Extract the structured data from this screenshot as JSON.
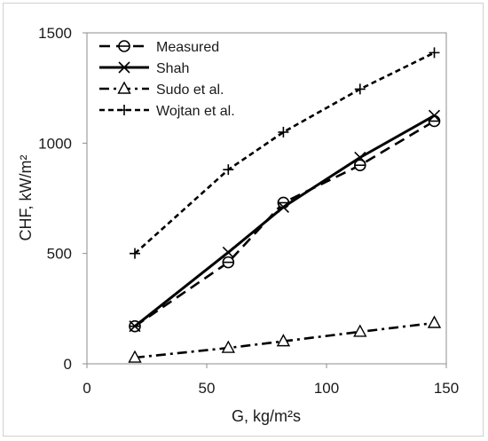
{
  "chart_data": {
    "type": "line",
    "xlabel": "G, kg/m²s",
    "ylabel": "CHF, kW/m²",
    "xlim": [
      0,
      150
    ],
    "ylim": [
      0,
      1500
    ],
    "xticks": [
      "0",
      "50",
      "100",
      "150"
    ],
    "yticks": [
      "0",
      "500",
      "1000",
      "1500"
    ],
    "grid": false,
    "legend_position": "top-left",
    "series": [
      {
        "name": "Measured",
        "marker": "circle-bar",
        "line": "dashed",
        "x": [
          20,
          59,
          82,
          114,
          145
        ],
        "y": [
          170,
          460,
          730,
          900,
          1100
        ]
      },
      {
        "name": "Shah",
        "marker": "x",
        "line": "solid",
        "x": [
          20,
          59,
          82,
          114,
          145
        ],
        "y": [
          170,
          505,
          710,
          935,
          1125
        ]
      },
      {
        "name": "Sudo et al.",
        "marker": "triangle",
        "line": "dashdot",
        "x": [
          20,
          59,
          82,
          114,
          145
        ],
        "y": [
          28,
          72,
          102,
          145,
          185
        ]
      },
      {
        "name": "Wojtan et al.",
        "marker": "plus",
        "line": "short-dashed",
        "x": [
          20,
          59,
          82,
          114,
          145
        ],
        "y": [
          500,
          880,
          1050,
          1245,
          1410
        ]
      }
    ]
  }
}
